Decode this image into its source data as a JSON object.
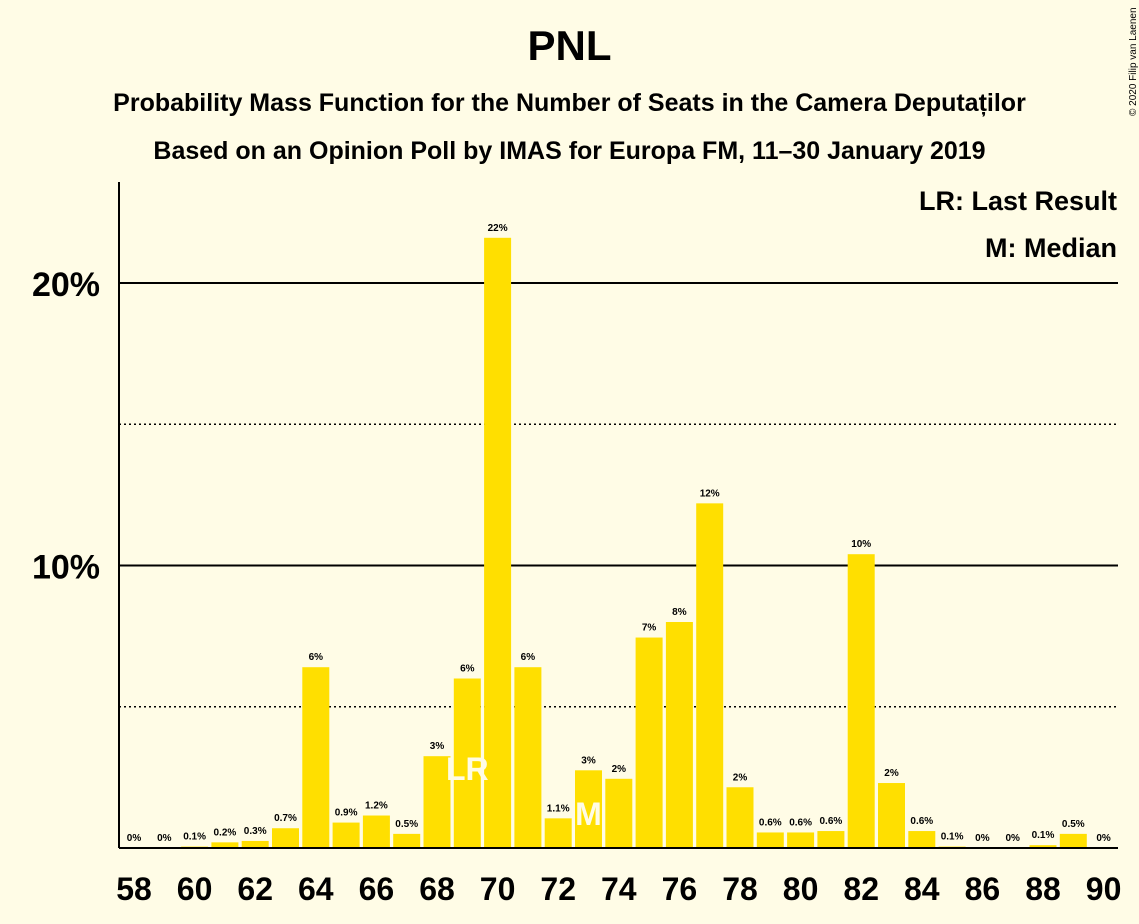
{
  "copyright": "© 2020 Filip van Laenen",
  "chart_data": {
    "type": "bar",
    "title": "PNL",
    "subtitle": "Probability Mass Function for the Number of Seats in the Camera Deputaților",
    "subtitle2": "Based on an Opinion Poll by IMAS for Europa FM, 11–30 January 2019",
    "legend": [
      "LR: Last Result",
      "M: Median"
    ],
    "legend_position": "top-right",
    "ylim": [
      0,
      23.6
    ],
    "y_solid_gridlines": [
      10,
      20
    ],
    "y_dotted_gridlines": [
      5,
      15
    ],
    "y_tick_labels": [
      {
        "value": 10,
        "label": "10%"
      },
      {
        "value": 20,
        "label": "20%"
      }
    ],
    "x_tick_labels": [
      "58",
      "60",
      "62",
      "64",
      "66",
      "68",
      "70",
      "72",
      "74",
      "76",
      "78",
      "80",
      "82",
      "84",
      "86",
      "88",
      "90"
    ],
    "bar_color": "#FFDF00",
    "categories": [
      58,
      59,
      60,
      61,
      62,
      63,
      64,
      65,
      66,
      67,
      68,
      69,
      70,
      71,
      72,
      73,
      74,
      75,
      76,
      77,
      78,
      79,
      80,
      81,
      82,
      83,
      84,
      85,
      86,
      87,
      88,
      89,
      90
    ],
    "values": [
      0,
      0,
      0.05,
      0.2,
      0.25,
      0.7,
      6.4,
      0.9,
      1.15,
      0.5,
      3.25,
      6.0,
      21.6,
      6.4,
      1.05,
      2.75,
      2.45,
      7.45,
      8.0,
      12.2,
      2.15,
      0.55,
      0.55,
      0.6,
      10.4,
      2.3,
      0.6,
      0.05,
      0,
      0,
      0.1,
      0.5,
      0
    ],
    "value_labels": [
      "0%",
      "0%",
      "0.1%",
      "0.2%",
      "0.3%",
      "0.7%",
      "6%",
      "0.9%",
      "1.2%",
      "0.5%",
      "3%",
      "6%",
      "22%",
      "6%",
      "1.1%",
      "3%",
      "2%",
      "7%",
      "8%",
      "12%",
      "2%",
      "0.6%",
      "0.6%",
      "0.6%",
      "10%",
      "2%",
      "0.6%",
      "0.1%",
      "0%",
      "0%",
      "0.1%",
      "0.5%",
      "0%"
    ],
    "markers": [
      {
        "seats": 69,
        "text": "LR"
      },
      {
        "seats": 73,
        "text": "M"
      }
    ]
  }
}
